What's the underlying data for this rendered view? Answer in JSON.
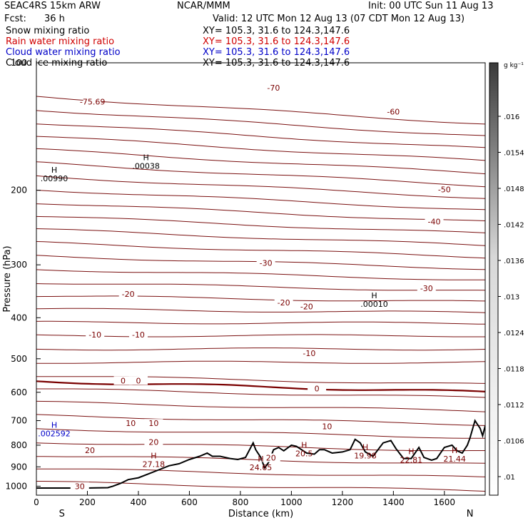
{
  "header": {
    "model": "SEAC4RS 15km ARW",
    "center": "NCAR/MMM",
    "init": "Init: 00 UTC Sun 11 Aug 13",
    "fcst_label": "Fcst:",
    "fcst_value": "36 h",
    "valid": "Valid: 12 UTC Mon 12 Aug 13 (07 CDT Mon 12 Aug 13)"
  },
  "fields": [
    {
      "name": "Snow mixing ratio",
      "xy": "XY= 105.3, 31.6 to 124.3,147.6",
      "color": "#000000"
    },
    {
      "name": "Rain water mixing ratio",
      "xy": "XY= 105.3, 31.6 to 124.3,147.6",
      "color": "#d00000"
    },
    {
      "name": "Cloud water mixing ratio",
      "xy": "XY= 105.3, 31.6 to 124.3,147.6",
      "color": "#0000c8"
    },
    {
      "name": "Cloud ice mixing ratio",
      "xy": "XY= 105.3, 31.6 to 124.3,147.6",
      "color": "#000000"
    }
  ],
  "chart_data": {
    "type": "line",
    "xlabel": "Distance (km)",
    "ylabel": "Pressure (hPa)",
    "xlim": [
      0,
      1760
    ],
    "ylim": [
      100,
      1050
    ],
    "y_scale": "log",
    "x_ticks": [
      0,
      200,
      400,
      600,
      800,
      1000,
      1200,
      1400,
      1600
    ],
    "x_tick_labels": [
      "0",
      "200",
      "400",
      "600",
      "800",
      "1000",
      "1200",
      "1400",
      "1600"
    ],
    "y_ticks": [
      100,
      200,
      300,
      400,
      500,
      600,
      700,
      800,
      900,
      1000
    ],
    "y_tick_labels": [
      "100",
      "200",
      "300",
      "400",
      "500",
      "600",
      "700",
      "800",
      "900",
      "1000"
    ],
    "end_labels": {
      "left": "S",
      "right": "N"
    },
    "colorbar": {
      "unit": "g kg⁻¹",
      "labels": [
        "0.016",
        ".0154",
        ".0148",
        ".0142",
        ".0136",
        ".013",
        ".0124",
        ".0118",
        ".0112",
        ".0106",
        ".01"
      ],
      "display_labels": [
        ".016",
        ".0154",
        ".0148",
        ".0142",
        ".0136",
        ".013",
        ".0124",
        ".0118",
        ".0112",
        ".0106",
        ".01"
      ]
    },
    "isotherm_labels": [
      {
        "text": "-75.69",
        "x": 220,
        "p": 124
      },
      {
        "text": "-70",
        "x": 930,
        "p": 115
      },
      {
        "text": "-60",
        "x": 1400,
        "p": 131
      },
      {
        "text": "-50",
        "x": 1600,
        "p": 200
      },
      {
        "text": "-40",
        "x": 1560,
        "p": 238
      },
      {
        "text": "-30",
        "x": 900,
        "p": 298
      },
      {
        "text": "-30",
        "x": 1530,
        "p": 342
      },
      {
        "text": "-20",
        "x": 360,
        "p": 353
      },
      {
        "text": "-20",
        "x": 970,
        "p": 370
      },
      {
        "text": "-20",
        "x": 1060,
        "p": 378
      },
      {
        "text": "-10",
        "x": 230,
        "p": 440
      },
      {
        "text": "-10",
        "x": 400,
        "p": 440
      },
      {
        "text": "-10",
        "x": 1070,
        "p": 487
      },
      {
        "text": "0",
        "x": 340,
        "p": 565
      },
      {
        "text": "0",
        "x": 400,
        "p": 565
      },
      {
        "text": "0",
        "x": 1100,
        "p": 590
      },
      {
        "text": "10",
        "x": 370,
        "p": 713
      },
      {
        "text": "10",
        "x": 460,
        "p": 713
      },
      {
        "text": "10",
        "x": 1140,
        "p": 725
      },
      {
        "text": "20",
        "x": 460,
        "p": 790
      },
      {
        "text": "20",
        "x": 210,
        "p": 826
      },
      {
        "text": "20",
        "x": 920,
        "p": 860
      },
      {
        "text": "30",
        "x": 170,
        "p": 1005
      }
    ],
    "max_labels": [
      {
        "text": ".00990",
        "x": 70,
        "p": 186,
        "color": "#000000"
      },
      {
        "text": ".00038",
        "x": 430,
        "p": 174,
        "color": "#000000"
      },
      {
        "text": ".00010",
        "x": 1325,
        "p": 368,
        "color": "#000000"
      },
      {
        "text": ".002592",
        "x": 70,
        "p": 745,
        "color": "#0000c8"
      },
      {
        "text": "27.18",
        "x": 460,
        "p": 880,
        "color": "#7a0000"
      },
      {
        "text": "24.65",
        "x": 880,
        "p": 895,
        "color": "#7a0000"
      },
      {
        "text": "20.5",
        "x": 1050,
        "p": 830,
        "color": "#7a0000"
      },
      {
        "text": "19.98",
        "x": 1290,
        "p": 840,
        "color": "#7a0000"
      },
      {
        "text": "22.81",
        "x": 1470,
        "p": 860,
        "color": "#7a0000"
      },
      {
        "text": "21.44",
        "x": 1640,
        "p": 855,
        "color": "#7a0000"
      }
    ],
    "terrain": {
      "x": [
        0,
        100,
        200,
        280,
        300,
        330,
        360,
        400,
        440,
        480,
        520,
        560,
        600,
        640,
        670,
        690,
        720,
        760,
        790,
        820,
        850,
        860,
        880,
        895,
        910,
        930,
        950,
        970,
        1000,
        1020,
        1040,
        1060,
        1090,
        1110,
        1130,
        1160,
        1200,
        1230,
        1250,
        1270,
        1290,
        1320,
        1360,
        1390,
        1410,
        1440,
        1470,
        1500,
        1520,
        1550,
        1570,
        1600,
        1630,
        1650,
        1670,
        1690,
        1700,
        1720,
        1730,
        1740,
        1750,
        1760
      ],
      "p": [
        1010,
        1010,
        1010,
        1008,
        1000,
        985,
        965,
        955,
        935,
        915,
        895,
        885,
        865,
        850,
        835,
        850,
        850,
        860,
        865,
        855,
        790,
        820,
        855,
        905,
        880,
        820,
        810,
        825,
        800,
        805,
        820,
        835,
        840,
        820,
        820,
        835,
        830,
        820,
        775,
        790,
        830,
        850,
        790,
        780,
        815,
        860,
        860,
        810,
        855,
        868,
        860,
        810,
        800,
        825,
        835,
        800,
        770,
        700,
        715,
        730,
        760,
        720
      ]
    }
  }
}
